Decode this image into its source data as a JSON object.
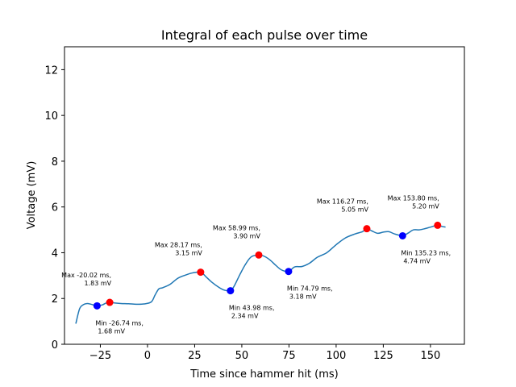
{
  "chart_data": {
    "type": "line",
    "title": "Integral of each pulse over time",
    "xlabel": "Time since hammer hit (ms)",
    "ylabel": "Voltage (mV)",
    "xlim": [
      -44,
      168
    ],
    "ylim": [
      0,
      13
    ],
    "xticks": [
      -25,
      0,
      25,
      50,
      75,
      100,
      125,
      150
    ],
    "yticks": [
      0,
      2,
      4,
      6,
      8,
      10,
      12
    ],
    "grid": false,
    "line_color": "#1f77b4",
    "max_color": "#ff0000",
    "min_color": "#0000ff",
    "series": [
      {
        "x": [
          -38,
          -36,
          -34,
          -32,
          -30,
          -28,
          -26.74,
          -24,
          -22,
          -20.02,
          -17,
          -14,
          -10,
          -6,
          -2,
          2,
          4,
          6,
          8,
          12,
          16,
          20,
          24,
          28.17,
          31,
          34,
          38,
          41,
          43.98,
          46,
          49,
          52,
          55,
          58.99,
          62,
          65,
          68,
          71,
          74.79,
          78,
          82,
          86,
          90,
          95,
          100,
          105,
          110,
          114,
          116.27,
          119,
          122,
          125,
          128,
          131,
          135.23,
          138,
          141,
          144,
          147,
          150,
          153.8,
          156,
          158
        ],
        "y": [
          0.9,
          1.55,
          1.73,
          1.78,
          1.75,
          1.7,
          1.68,
          1.72,
          1.8,
          1.83,
          1.8,
          1.78,
          1.77,
          1.75,
          1.76,
          1.85,
          2.15,
          2.42,
          2.47,
          2.62,
          2.88,
          3.02,
          3.12,
          3.15,
          2.95,
          2.72,
          2.48,
          2.36,
          2.34,
          2.55,
          3.05,
          3.5,
          3.82,
          3.9,
          3.84,
          3.68,
          3.45,
          3.25,
          3.18,
          3.38,
          3.4,
          3.55,
          3.8,
          4.0,
          4.35,
          4.65,
          4.82,
          4.92,
          5.05,
          4.95,
          4.85,
          4.9,
          4.92,
          4.82,
          4.74,
          4.85,
          5.0,
          5.0,
          5.05,
          5.12,
          5.2,
          5.15,
          5.12
        ]
      }
    ],
    "maxima": [
      {
        "x": -20.02,
        "y": 1.83,
        "label_line1": "Max -20.02 ms,",
        "label_line2": "1.83 mV"
      },
      {
        "x": 28.17,
        "y": 3.15,
        "label_line1": "Max 28.17 ms,",
        "label_line2": "3.15 mV"
      },
      {
        "x": 58.99,
        "y": 3.9,
        "label_line1": "Max 58.99 ms,",
        "label_line2": "3.90 mV"
      },
      {
        "x": 116.27,
        "y": 5.05,
        "label_line1": "Max 116.27 ms,",
        "label_line2": "5.05 mV"
      },
      {
        "x": 153.8,
        "y": 5.2,
        "label_line1": "Max 153.80 ms,",
        "label_line2": "5.20 mV"
      }
    ],
    "minima": [
      {
        "x": -26.74,
        "y": 1.68,
        "label_line1": "Min -26.74 ms,",
        "label_line2": "1.68 mV"
      },
      {
        "x": 43.98,
        "y": 2.34,
        "label_line1": "Min 43.98 ms,",
        "label_line2": "2.34 mV"
      },
      {
        "x": 74.79,
        "y": 3.18,
        "label_line1": "Min 74.79 ms,",
        "label_line2": "3.18 mV"
      },
      {
        "x": 135.23,
        "y": 4.74,
        "label_line1": "Min 135.23 ms,",
        "label_line2": "4.74 mV"
      }
    ]
  }
}
